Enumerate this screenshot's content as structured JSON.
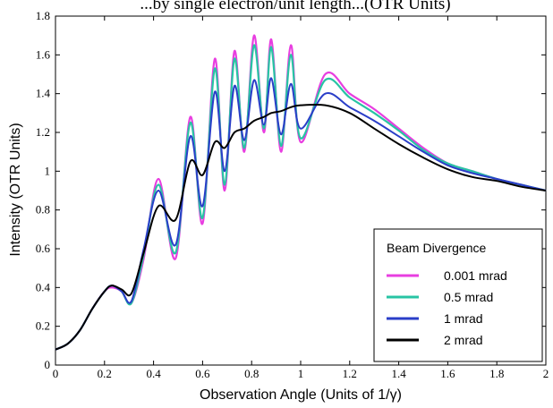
{
  "chart_data": {
    "type": "line",
    "title": "...by single electron/unit length...(OTR Units)",
    "xlabel": "Observation Angle (Units of 1/γ)",
    "ylabel": "Intensity (OTR Units)",
    "xlim": [
      0,
      2
    ],
    "ylim": [
      0,
      1.8
    ],
    "xticks": [
      "0",
      "0.2",
      "0.4",
      "0.6",
      "0.8",
      "1",
      "1.2",
      "1.4",
      "1.6",
      "1.8",
      "2"
    ],
    "yticks": [
      "0",
      "0.2",
      "0.4",
      "0.6",
      "0.8",
      "1",
      "1.2",
      "1.4",
      "1.6",
      "1.8"
    ],
    "grid": false,
    "legend_title": "Beam Divergence",
    "legend_position": "bottom-right",
    "x": [
      0,
      0.05,
      0.1,
      0.15,
      0.2,
      0.23,
      0.27,
      0.31,
      0.36,
      0.42,
      0.49,
      0.55,
      0.6,
      0.65,
      0.69,
      0.73,
      0.77,
      0.81,
      0.85,
      0.88,
      0.92,
      0.96,
      1.0,
      1.1,
      1.2,
      1.3,
      1.4,
      1.5,
      1.6,
      1.7,
      1.8,
      1.9,
      2.0
    ],
    "series": [
      {
        "name": "0.001 mrad",
        "color": "#e83ee0",
        "width": 2.2,
        "values": [
          0.08,
          0.11,
          0.18,
          0.29,
          0.38,
          0.4,
          0.38,
          0.32,
          0.55,
          0.96,
          0.55,
          1.28,
          0.73,
          1.58,
          0.9,
          1.62,
          1.1,
          1.7,
          1.2,
          1.68,
          1.1,
          1.65,
          1.15,
          1.5,
          1.4,
          1.32,
          1.22,
          1.12,
          1.04,
          1.0,
          0.96,
          0.93,
          0.9
        ]
      },
      {
        "name": "0.5 mrad",
        "color": "#28c4a4",
        "width": 2.2,
        "values": [
          0.08,
          0.11,
          0.18,
          0.29,
          0.38,
          0.41,
          0.38,
          0.32,
          0.57,
          0.93,
          0.58,
          1.25,
          0.76,
          1.53,
          0.93,
          1.58,
          1.12,
          1.65,
          1.22,
          1.64,
          1.13,
          1.6,
          1.17,
          1.47,
          1.38,
          1.3,
          1.21,
          1.11,
          1.04,
          1.0,
          0.96,
          0.93,
          0.9
        ]
      },
      {
        "name": "1 mrad",
        "color": "#2a3ec8",
        "width": 2.0,
        "values": [
          0.08,
          0.11,
          0.18,
          0.29,
          0.38,
          0.41,
          0.38,
          0.33,
          0.6,
          0.9,
          0.62,
          1.18,
          0.82,
          1.41,
          1.0,
          1.44,
          1.16,
          1.47,
          1.24,
          1.48,
          1.19,
          1.45,
          1.22,
          1.4,
          1.33,
          1.26,
          1.18,
          1.1,
          1.03,
          0.99,
          0.96,
          0.93,
          0.9
        ]
      },
      {
        "name": "2 mrad",
        "color": "#000000",
        "width": 2.0,
        "values": [
          0.08,
          0.11,
          0.18,
          0.29,
          0.38,
          0.41,
          0.39,
          0.37,
          0.58,
          0.82,
          0.75,
          1.05,
          0.98,
          1.15,
          1.12,
          1.2,
          1.22,
          1.26,
          1.28,
          1.3,
          1.31,
          1.33,
          1.34,
          1.34,
          1.3,
          1.22,
          1.14,
          1.07,
          1.01,
          0.97,
          0.95,
          0.92,
          0.9
        ]
      }
    ]
  }
}
